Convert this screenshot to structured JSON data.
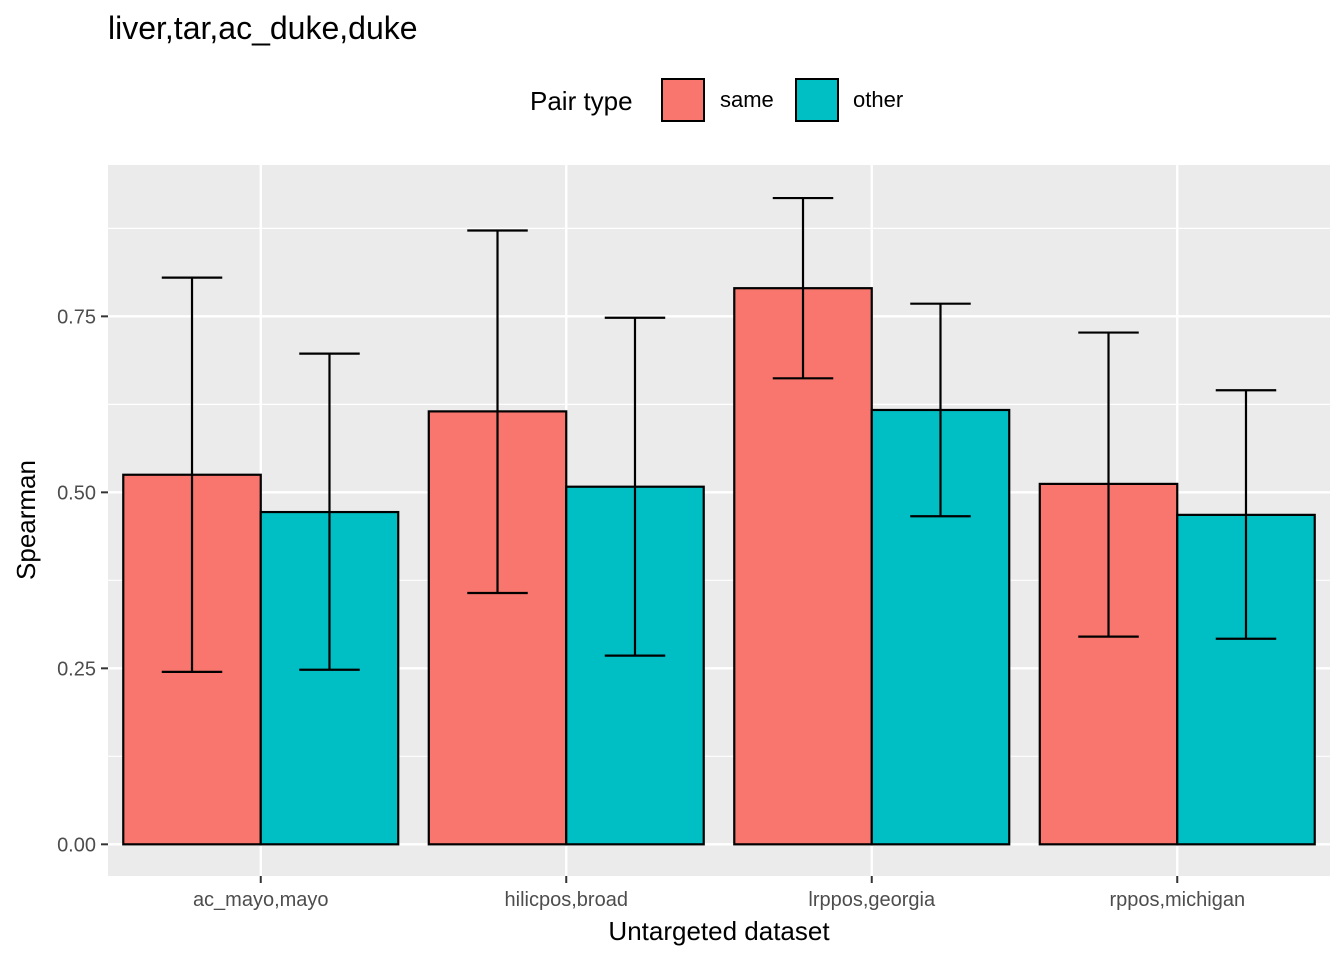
{
  "chart_data": {
    "type": "bar",
    "title": "liver,tar,ac_duke,duke",
    "xlabel": "Untargeted dataset",
    "ylabel": "Spearman",
    "categories": [
      "ac_mayo,mayo",
      "hilicpos,broad",
      "lrppos,georgia",
      "rppos,michigan"
    ],
    "series": [
      {
        "name": "same",
        "color": "#F8766D",
        "values": [
          0.525,
          0.615,
          0.79,
          0.512
        ],
        "error_low": [
          0.245,
          0.357,
          0.662,
          0.295
        ],
        "error_high": [
          0.805,
          0.872,
          0.918,
          0.727
        ]
      },
      {
        "name": "other",
        "color": "#00BFC4",
        "values": [
          0.472,
          0.508,
          0.617,
          0.468
        ],
        "error_low": [
          0.248,
          0.268,
          0.466,
          0.292
        ],
        "error_high": [
          0.697,
          0.748,
          0.768,
          0.645
        ]
      }
    ],
    "yticks": [
      "0.00",
      "0.25",
      "0.50",
      "0.75"
    ],
    "ylim": [
      -0.045,
      0.965
    ],
    "grid": true,
    "legend": {
      "title": "Pair type",
      "position": "top"
    }
  }
}
